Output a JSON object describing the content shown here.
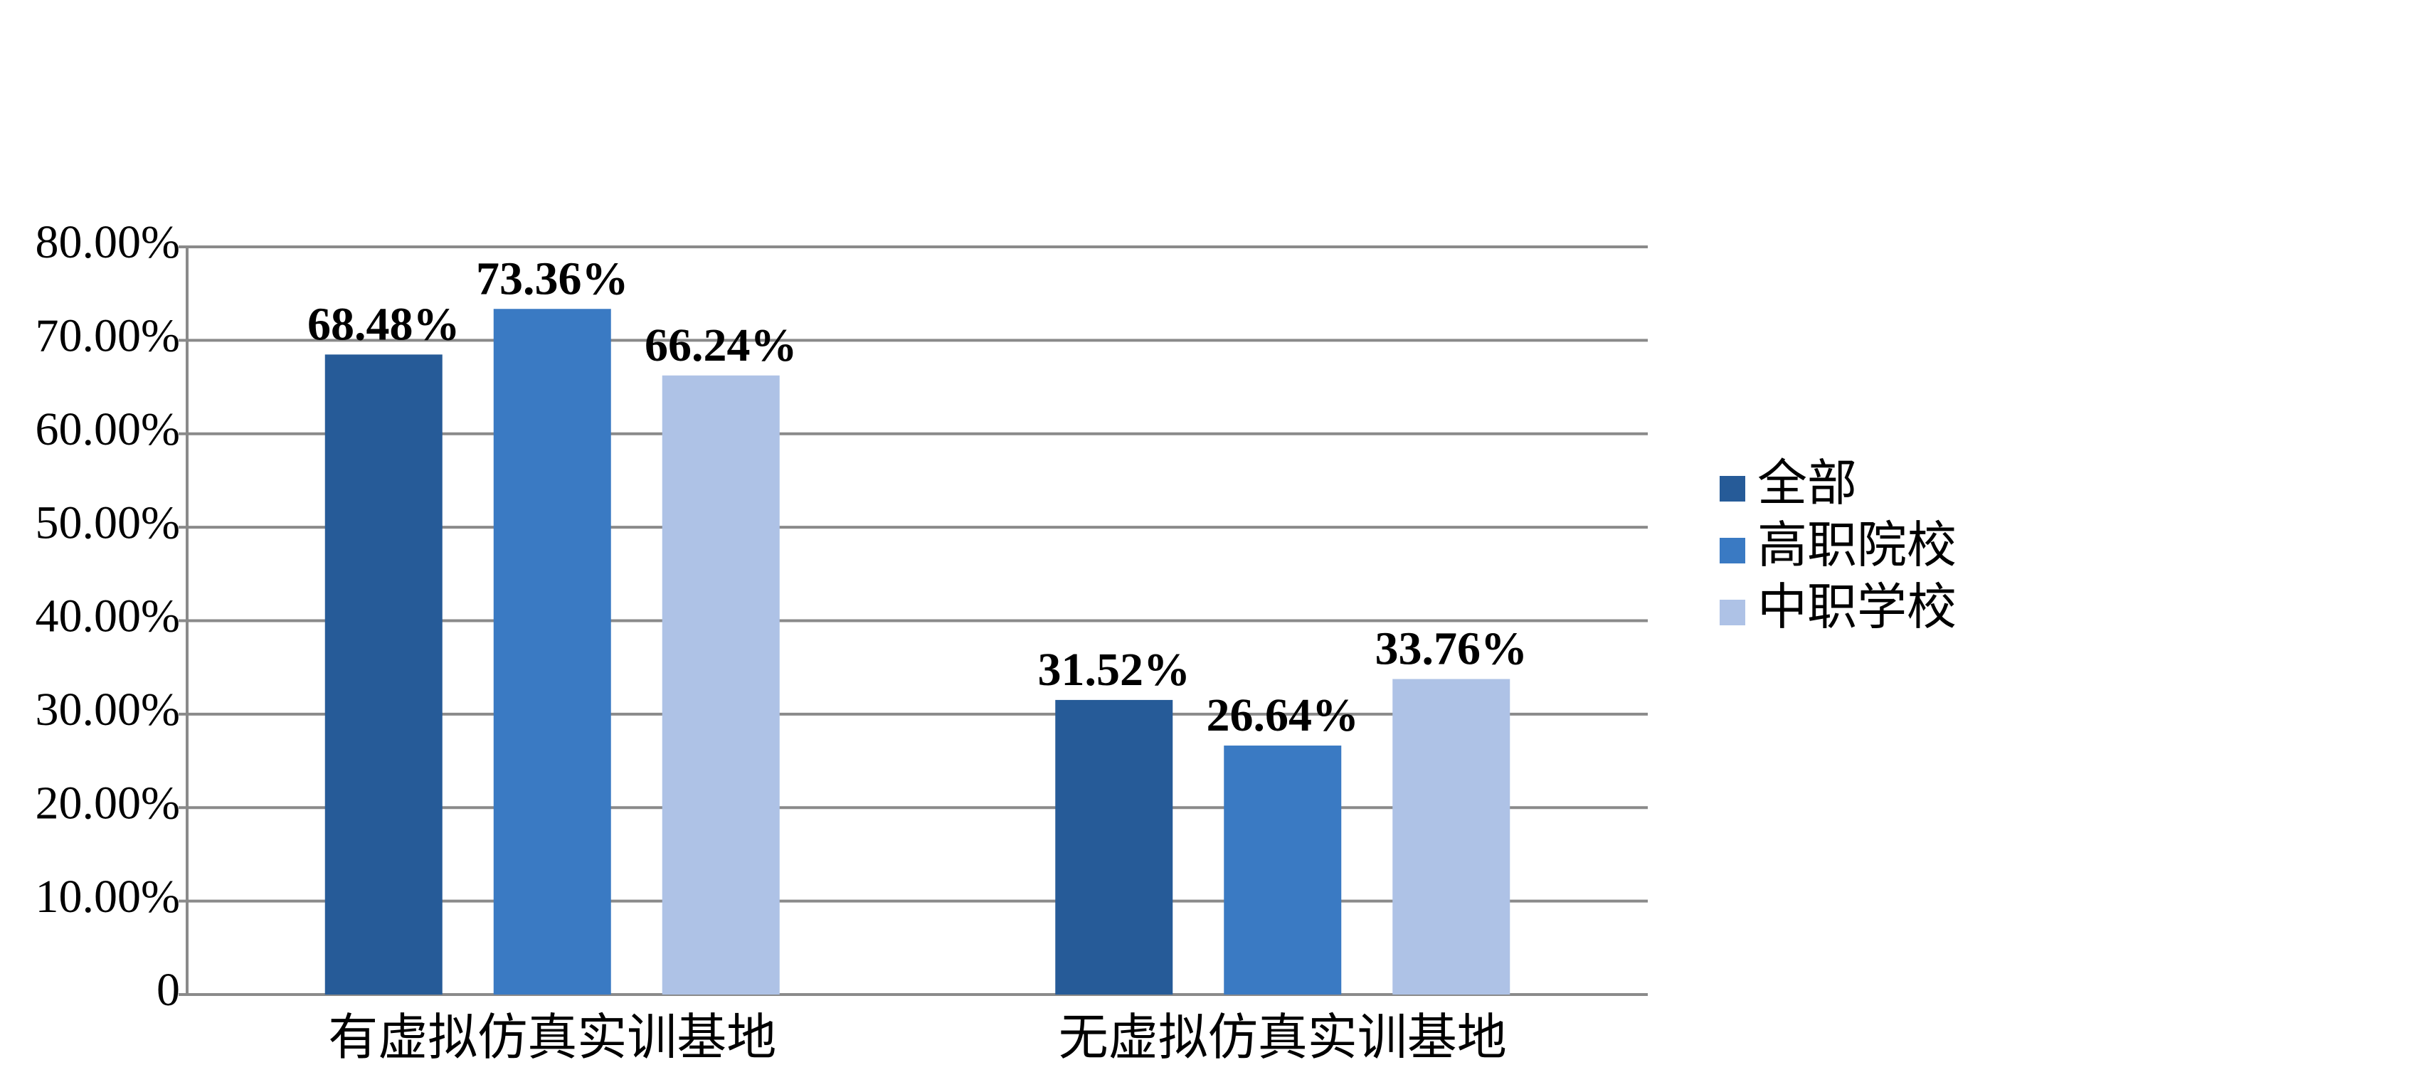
{
  "chart_data": {
    "type": "bar",
    "categories": [
      "有虚拟仿真实训基地",
      "无虚拟仿真实训基地"
    ],
    "series": [
      {
        "name": "全部",
        "color": "#265b98",
        "values": [
          68.48,
          31.52
        ],
        "value_labels": [
          "68.48%",
          "31.52%"
        ]
      },
      {
        "name": "高职院校",
        "color": "#3a7ac3",
        "values": [
          73.36,
          26.64
        ],
        "value_labels": [
          "73.36%",
          "26.64%"
        ]
      },
      {
        "name": "中职学校",
        "color": "#aec2e6",
        "values": [
          66.24,
          33.76
        ],
        "value_labels": [
          "66.24%",
          "33.76%"
        ]
      }
    ],
    "ylim": [
      0,
      80
    ],
    "yticks": [
      0,
      {
        "value": 10,
        "label": "10.00%"
      },
      {
        "value": 20,
        "label": "20.00%"
      },
      {
        "value": 30,
        "label": "30.00%"
      },
      {
        "value": 40,
        "label": "40.00%"
      },
      {
        "value": 50,
        "label": "50.00%"
      },
      {
        "value": 60,
        "label": "60.00%"
      },
      {
        "value": 70,
        "label": "70.00%"
      },
      {
        "value": 80,
        "label": "80.00%"
      }
    ],
    "grid": true,
    "legend": "right"
  }
}
